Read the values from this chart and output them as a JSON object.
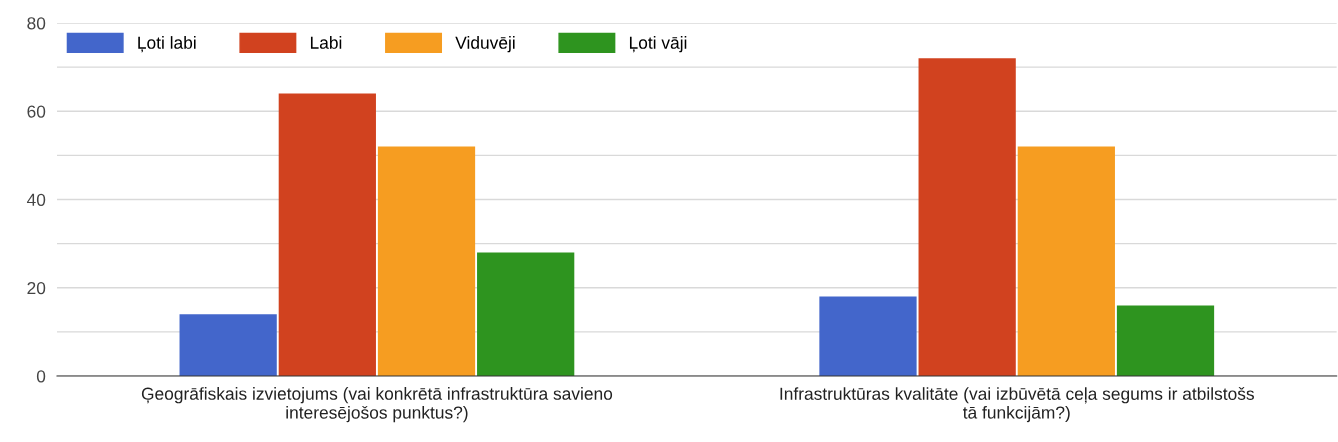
{
  "chart_data": {
    "type": "bar",
    "categories": [
      "Ģeogrāfiskais izvietojums (vai konkrētā infrastruktūra savieno\ninteresējošos punktus?)",
      "Infrastruktūras kvalitāte (vai izbūvētā ceļa segums ir atbilstošs\ntā funkcijām?)"
    ],
    "series": [
      {
        "name": "Ļoti labi",
        "color": "#4366cb",
        "values": [
          14,
          18
        ]
      },
      {
        "name": "Labi",
        "color": "#d1421f",
        "values": [
          64,
          72
        ]
      },
      {
        "name": "Viduvēji",
        "color": "#f69d21",
        "values": [
          52,
          52
        ]
      },
      {
        "name": "Ļoti vāji",
        "color": "#2e941f",
        "values": [
          28,
          16
        ]
      }
    ],
    "ylim": [
      0,
      80
    ],
    "yticks": [
      0,
      {
        "value": 10,
        "label": null
      },
      20,
      {
        "value": 30,
        "label": null
      },
      40,
      {
        "value": 50,
        "label": null
      },
      60,
      {
        "value": 70,
        "label": null
      },
      80
    ],
    "grid": "y",
    "legend": "top left"
  }
}
